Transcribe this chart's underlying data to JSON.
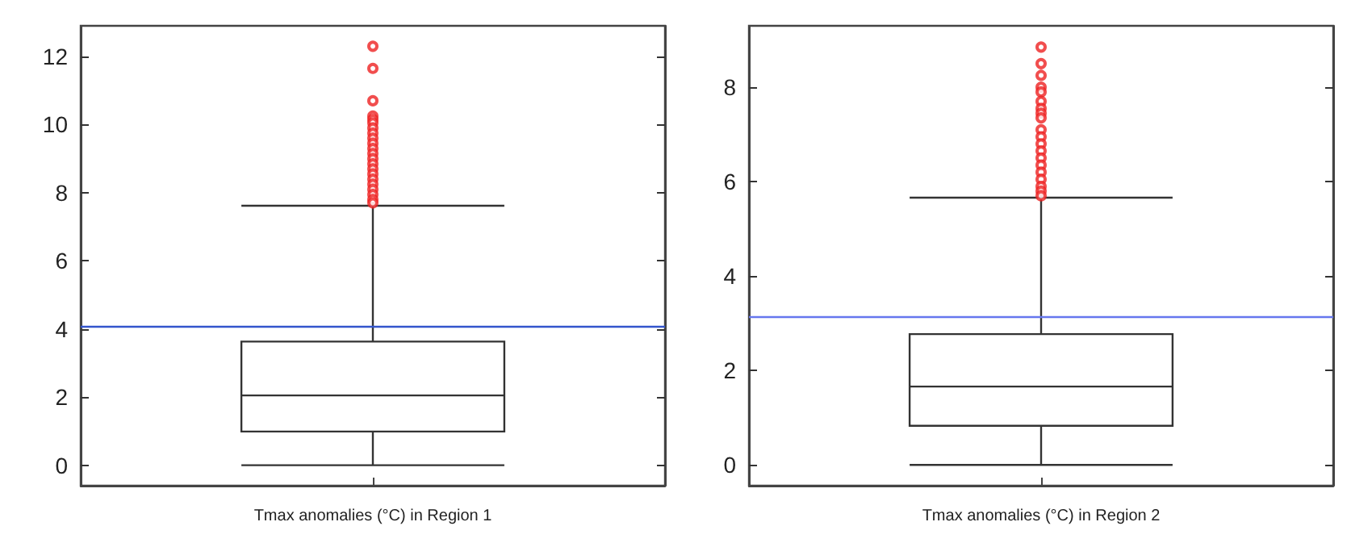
{
  "chart_data": [
    {
      "type": "box",
      "xlabel": "Tmax anomalies (°C) in Region 1",
      "categories": [
        null
      ],
      "boxes": [
        {
          "low": 0,
          "q1": 0.99,
          "median": 2.05,
          "q3": 3.63,
          "high": 7.62,
          "outliers": [
            12.3,
            11.65,
            10.7,
            10.25,
            10.15,
            10.05,
            9.9,
            9.75,
            9.6,
            9.45,
            9.3,
            9.15,
            9.0,
            8.85,
            8.7,
            8.55,
            8.4,
            8.25,
            8.1,
            7.95,
            7.8,
            7.7
          ]
        }
      ],
      "ylim": [
        -0.6,
        12.9
      ],
      "yticks": [
        0,
        2,
        4,
        6,
        8,
        10,
        12
      ],
      "ref_lines": [
        {
          "axis": "y",
          "value": 4.09,
          "color": "#3355cc"
        }
      ]
    },
    {
      "type": "box",
      "xlabel": "Tmax anomalies (°C) in Region 2",
      "categories": [
        null
      ],
      "boxes": [
        {
          "low": 0,
          "q1": 0.83,
          "median": 1.66,
          "q3": 2.77,
          "high": 5.66,
          "outliers": [
            8.85,
            8.5,
            8.25,
            8.0,
            7.9,
            7.7,
            7.55,
            7.45,
            7.35,
            7.1,
            6.95,
            6.8,
            6.65,
            6.5,
            6.35,
            6.2,
            6.05,
            5.9,
            5.8,
            5.7
          ]
        }
      ],
      "ylim": [
        -0.44,
        9.3
      ],
      "yticks": [
        0,
        2,
        4,
        6,
        8
      ],
      "ref_lines": [
        {
          "axis": "y",
          "value": 3.14,
          "color": "#6677ee"
        }
      ]
    }
  ]
}
